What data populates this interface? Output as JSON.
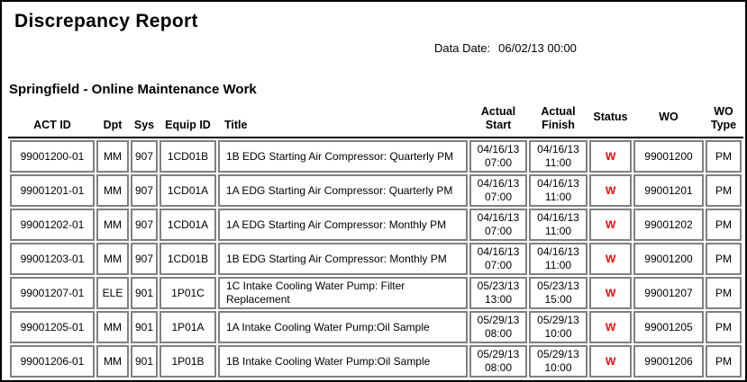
{
  "page": {
    "title": "Discrepancy Report",
    "data_date_label": "Data Date:",
    "data_date_value": "06/02/13 00:00",
    "section_title": "Springfield - Online Maintenance Work"
  },
  "table": {
    "columns": [
      "ACT ID",
      "Dpt",
      "Sys",
      "Equip ID",
      "Title",
      "Actual\nStart",
      "Actual\nFinish",
      "Status",
      "WO",
      "WO\nType"
    ],
    "status_color": "#ff0000",
    "border_color": "#808080",
    "rows": [
      {
        "act_id": "99001200-01",
        "dpt": "MM",
        "sys": "907",
        "equip_id": "1CD01B",
        "title": "1B EDG Starting Air Compressor: Quarterly PM",
        "actual_start": "04/16/13\n07:00",
        "actual_finish": "04/16/13\n11:00",
        "status": "W",
        "wo": "99001200",
        "wo_type": "PM"
      },
      {
        "act_id": "99001201-01",
        "dpt": "MM",
        "sys": "907",
        "equip_id": "1CD01A",
        "title": "1A EDG Starting Air Compressor: Quarterly PM",
        "actual_start": "04/16/13\n07:00",
        "actual_finish": "04/16/13\n11:00",
        "status": "W",
        "wo": "99001201",
        "wo_type": "PM"
      },
      {
        "act_id": "99001202-01",
        "dpt": "MM",
        "sys": "907",
        "equip_id": "1CD01A",
        "title": "1A EDG Starting Air Compressor: Monthly PM",
        "actual_start": "04/16/13\n07:00",
        "actual_finish": "04/16/13\n11:00",
        "status": "W",
        "wo": "99001202",
        "wo_type": "PM"
      },
      {
        "act_id": "99001203-01",
        "dpt": "MM",
        "sys": "907",
        "equip_id": "1CD01B",
        "title": "1B EDG Starting Air Compressor: Monthly PM",
        "actual_start": "04/16/13\n07:00",
        "actual_finish": "04/16/13\n11:00",
        "status": "W",
        "wo": "99001200",
        "wo_type": "PM"
      },
      {
        "act_id": "99001207-01",
        "dpt": "ELE",
        "sys": "901",
        "equip_id": "1P01C",
        "title": "1C Intake Cooling Water Pump: Filter Replacement",
        "actual_start": "05/23/13\n13:00",
        "actual_finish": "05/23/13\n15:00",
        "status": "W",
        "wo": "99001207",
        "wo_type": "PM"
      },
      {
        "act_id": "99001205-01",
        "dpt": "MM",
        "sys": "901",
        "equip_id": "1P01A",
        "title": "1A Intake Cooling Water Pump:Oil Sample",
        "actual_start": "05/29/13\n08:00",
        "actual_finish": "05/29/13\n10:00",
        "status": "W",
        "wo": "99001205",
        "wo_type": "PM"
      },
      {
        "act_id": "99001206-01",
        "dpt": "MM",
        "sys": "901",
        "equip_id": "1P01B",
        "title": "1B Intake Cooling Water Pump:Oil Sample",
        "actual_start": "05/29/13\n08:00",
        "actual_finish": "05/29/13\n10:00",
        "status": "W",
        "wo": "99001206",
        "wo_type": "PM"
      }
    ]
  }
}
